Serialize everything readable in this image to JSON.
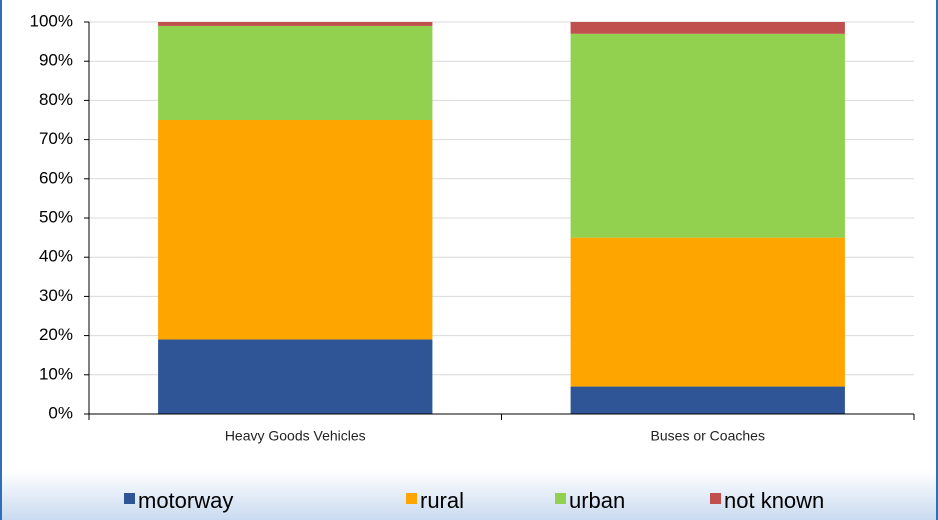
{
  "chart_data": {
    "type": "stacked_bar",
    "categories": [
      "Heavy Goods Vehicles",
      "Buses or Coaches"
    ],
    "series": [
      {
        "name": "motorway",
        "color": "#2f5597",
        "values": [
          19,
          7
        ]
      },
      {
        "name": "rural",
        "color": "#ffa500",
        "values": [
          56,
          38
        ]
      },
      {
        "name": "urban",
        "color": "#92d050",
        "values": [
          24,
          52
        ]
      },
      {
        "name": "not known",
        "color": "#c0504d",
        "values": [
          1,
          3
        ]
      }
    ],
    "ylim": [
      0,
      100
    ],
    "yticks": [
      {
        "value": 0,
        "label": "0%"
      },
      {
        "value": 10,
        "label": "10%"
      },
      {
        "value": 20,
        "label": "20%"
      },
      {
        "value": 30,
        "label": "30%"
      },
      {
        "value": 40,
        "label": "40%"
      },
      {
        "value": 50,
        "label": "50%"
      },
      {
        "value": 60,
        "label": "60%"
      },
      {
        "value": 70,
        "label": "70%"
      },
      {
        "value": 80,
        "label": "80%"
      },
      {
        "value": 90,
        "label": "90%"
      },
      {
        "value": 100,
        "label": "100%"
      }
    ],
    "grid": true,
    "legend": "bottom"
  }
}
